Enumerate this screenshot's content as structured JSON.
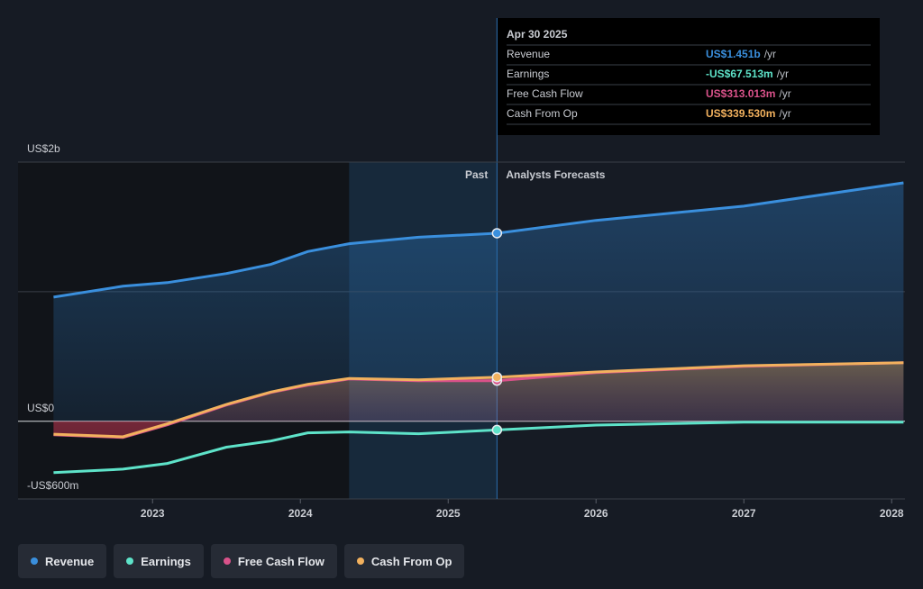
{
  "chart_data": {
    "type": "line",
    "x": [
      2022.33,
      2022.8,
      2023.1,
      2023.5,
      2023.8,
      2024.05,
      2024.33,
      2024.8,
      2025.33,
      2026,
      2027,
      2028.08
    ],
    "series": [
      {
        "name": "Revenue",
        "color": "#3a8fdd",
        "values": [
          958,
          1042,
          1070,
          1140,
          1210,
          1310,
          1370,
          1420,
          1451,
          1550,
          1660,
          1840
        ]
      },
      {
        "name": "Earnings",
        "color": "#5ee3c9",
        "values": [
          -396,
          -370,
          -326,
          -200,
          -153,
          -90,
          -83,
          -97,
          -67.513,
          -30,
          -8,
          -8
        ]
      },
      {
        "name": "Free Cash Flow",
        "color": "#d9528a",
        "values": [
          -104,
          -125,
          -28,
          125,
          222,
          278,
          326,
          313,
          313.013,
          375,
          424,
          451
        ]
      },
      {
        "name": "Cash From Op",
        "color": "#f2b15e",
        "values": [
          -100,
          -120,
          -20,
          130,
          225,
          285,
          330,
          320,
          339.53,
          380,
          428,
          452
        ]
      }
    ],
    "xlim": [
      2022.09,
      2028.09
    ],
    "xticks": [
      2023,
      2024,
      2025,
      2026,
      2027,
      2028
    ],
    "ylim": [
      -600,
      2000
    ],
    "yticks": [
      {
        "value": -600,
        "label": "-US$600m"
      },
      {
        "value": 0,
        "label": "US$0"
      },
      {
        "value": 2000,
        "label": "US$2b"
      }
    ],
    "minor_gridlines": [
      1000
    ],
    "past_highlight": [
      2024.33,
      2025.33
    ],
    "annotations": {
      "past": "Past",
      "forecast": "Analysts Forecasts"
    },
    "tooltip": {
      "title": "Apr 30 2025",
      "value_labels": [
        "US$1.451b",
        "-US$67.513m",
        "US$313.013m",
        "US$339.530m"
      ],
      "unit": "/yr"
    }
  }
}
